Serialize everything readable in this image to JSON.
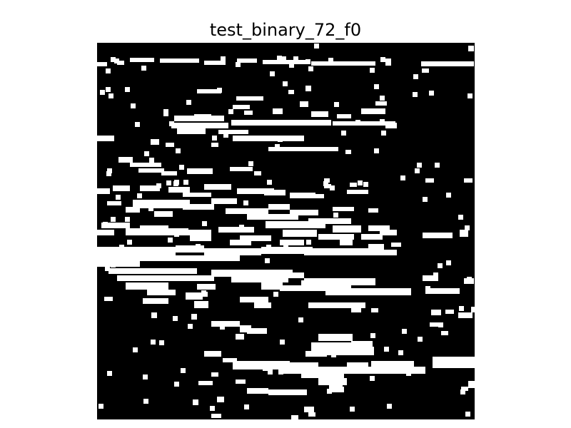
{
  "figure": {
    "title": "test_binary_72_f0"
  },
  "image": {
    "kind": "binary-mask",
    "background_color": "#000000",
    "foreground_color": "#ffffff"
  }
}
